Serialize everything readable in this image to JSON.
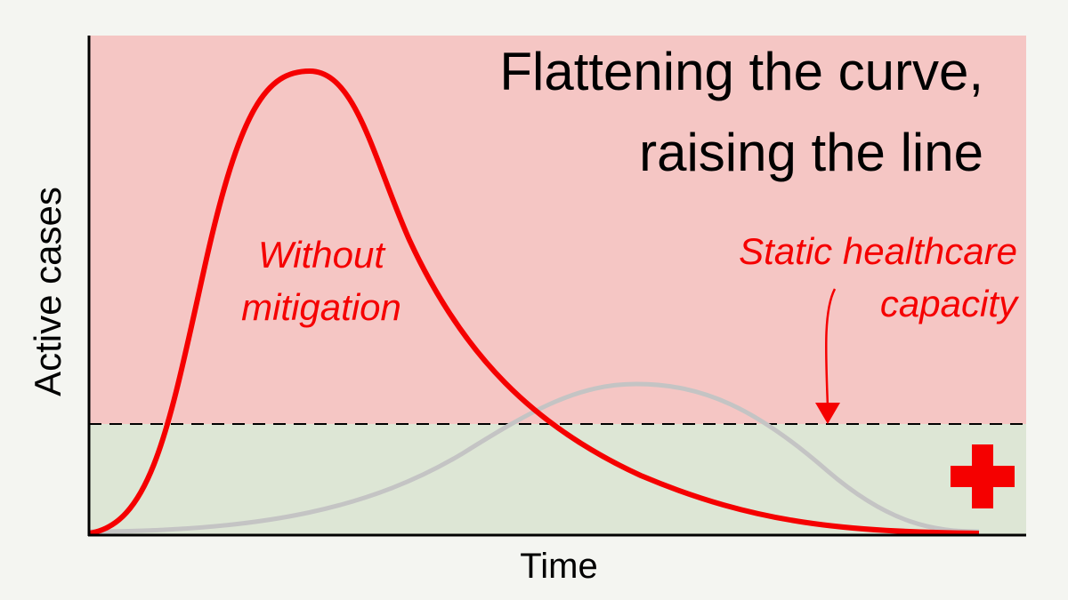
{
  "title": {
    "lines": [
      "Flattening the curve,",
      "raising the line"
    ]
  },
  "annotations": {
    "without_mitigation": [
      "Without",
      "mitigation"
    ],
    "capacity": [
      "Static healthcare",
      "capacity"
    ]
  },
  "axes": {
    "y_label": "Active cases",
    "x_label": "Time"
  }
}
